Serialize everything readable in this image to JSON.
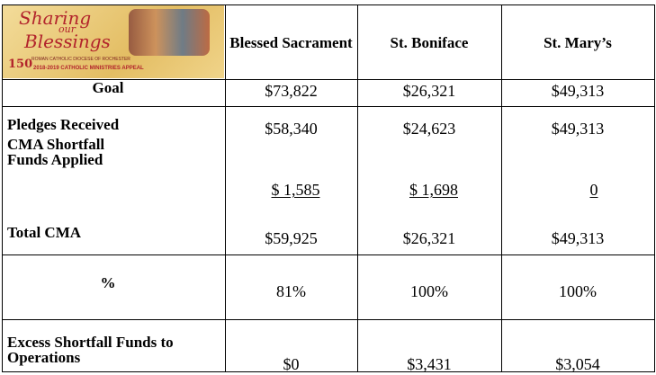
{
  "header": {
    "logo": {
      "line1": "Sharing",
      "line2": "our",
      "line3": "Blessings",
      "badge": "150",
      "diocese": "ROMAN CATHOLIC DIOCESE OF ROCHESTER",
      "appeal": "2018-2019 CATHOLIC MINISTRIES APPEAL"
    },
    "columns": [
      "Blessed Sacrament",
      "St. Boniface",
      "St. Mary’s"
    ]
  },
  "table": {
    "rows": [
      {
        "label": "Goal",
        "values": [
          "$73,822",
          "$26,321",
          "$49,313"
        ]
      },
      {
        "label": "Pledges Received",
        "values": [
          "$58,340",
          "$24,623",
          "$49,313"
        ]
      },
      {
        "label": "CMA Shortfall Funds Applied",
        "values": [
          "$ 1,585",
          "$ 1,698",
          "0"
        ]
      },
      {
        "label": "Total CMA",
        "values": [
          "$59,925",
          "$26,321",
          "$49,313"
        ]
      },
      {
        "label": "%",
        "values": [
          "81%",
          "100%",
          "100%"
        ]
      },
      {
        "label": "Excess Shortfall Funds to Operations",
        "values": [
          "$0",
          "$3,431",
          "$3,054"
        ]
      }
    ]
  }
}
